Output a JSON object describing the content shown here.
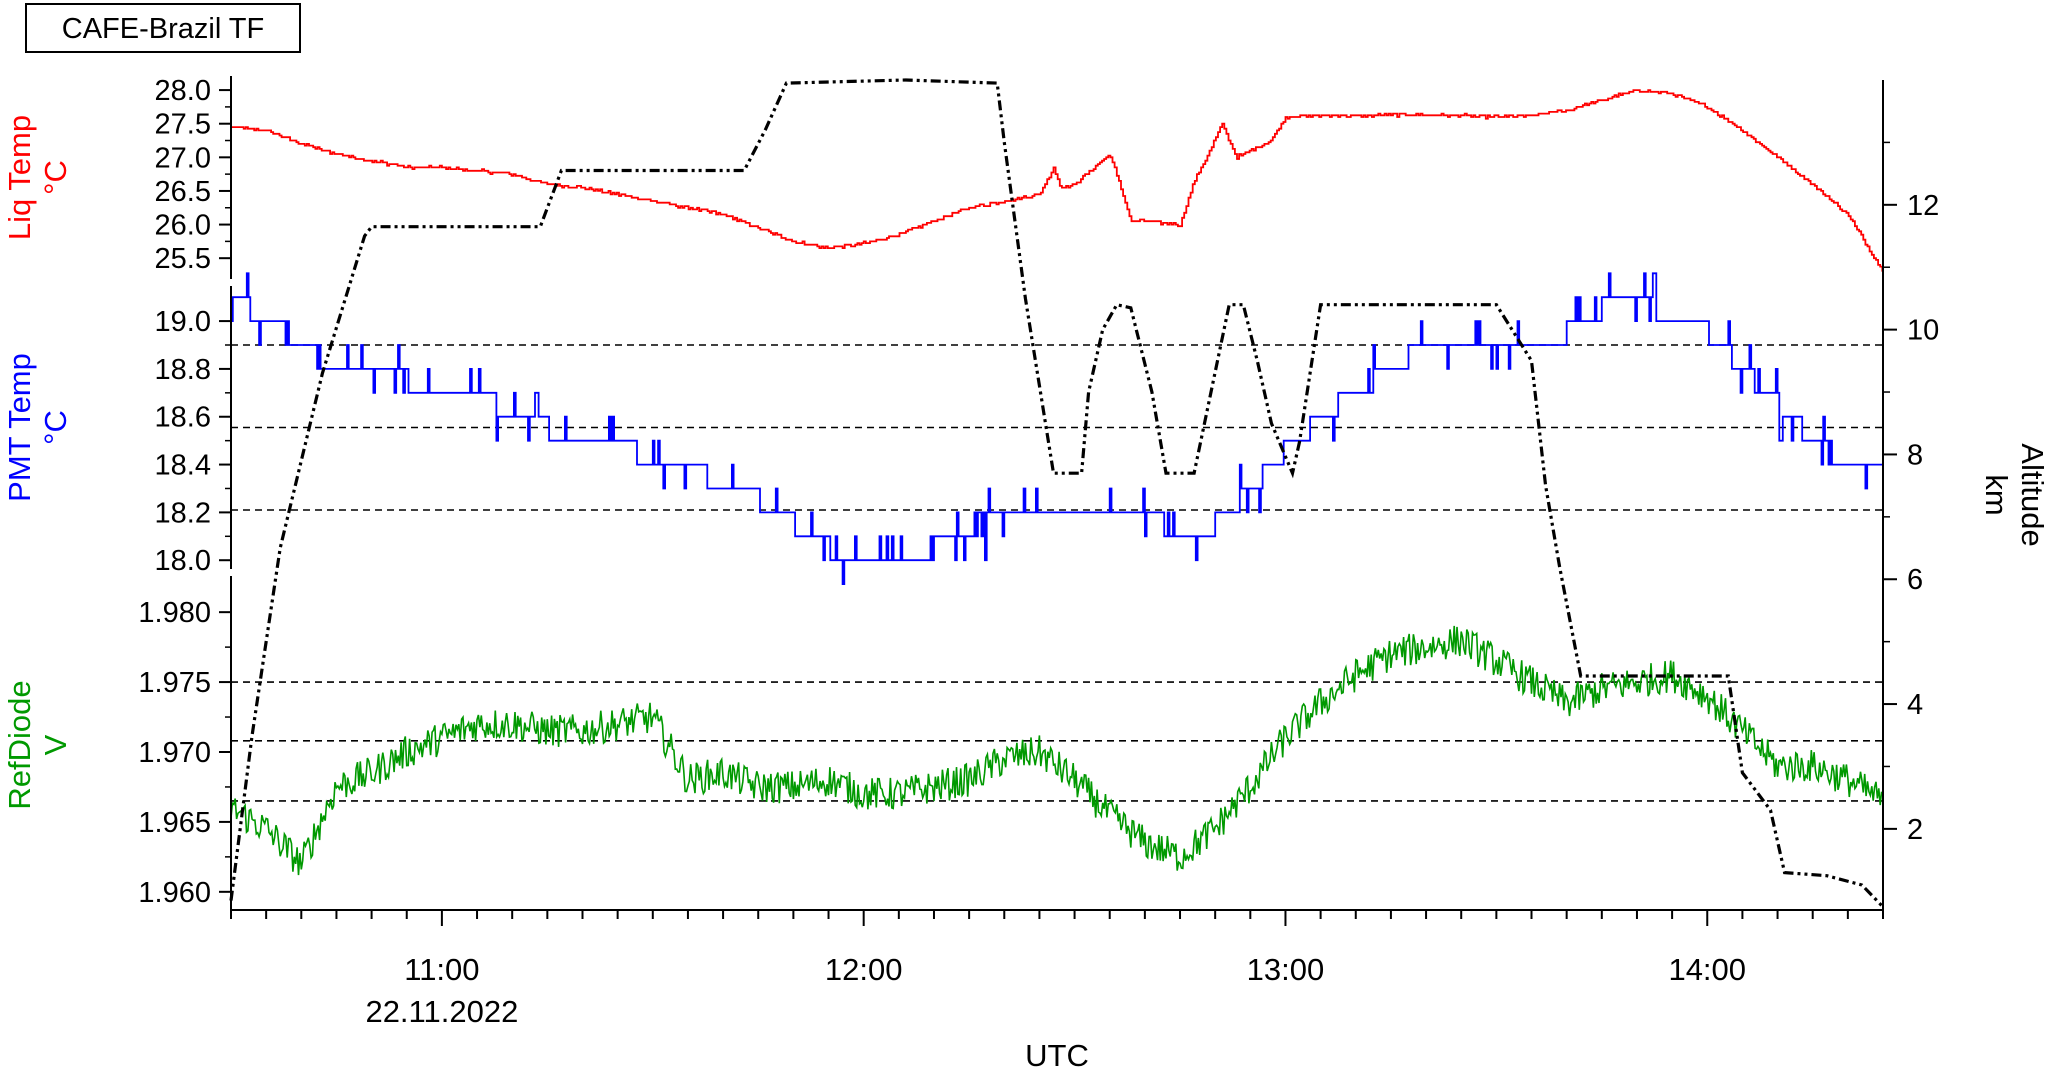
{
  "chart_data": {
    "type": "line",
    "title": "CAFE-Brazil TF",
    "xlabel": "UTC",
    "x_axis": {
      "range": [
        "10:30",
        "14:25"
      ],
      "tick_labels": [
        "11:00",
        "12:00",
        "13:00",
        "14:00"
      ],
      "date_label": "22.11.2022",
      "minor_tick_interval_minutes": 5
    },
    "right_axis": {
      "label_line1": "Altitude",
      "label_line2": "km",
      "range": [
        0.7,
        14.0
      ],
      "ticks": [
        "2",
        "4",
        "6",
        "8",
        "10",
        "12"
      ],
      "color": "#000000"
    },
    "panels": [
      {
        "name": "liq-temp",
        "label_line1": "Liq Temp",
        "label_line2": "°C",
        "color": "#ff0000",
        "range": [
          25.25,
          28.15
        ],
        "ticks": [
          "25.5",
          "26.0",
          "26.5",
          "27.0",
          "27.5",
          "28.0"
        ],
        "gridlines": []
      },
      {
        "name": "pmt-temp",
        "label_line1": "PMT Temp",
        "label_line2": "°C",
        "color": "#0000ff",
        "range": [
          17.98,
          19.13
        ],
        "ticks": [
          "18.0",
          "18.2",
          "18.4",
          "18.6",
          "18.8",
          "19.0"
        ],
        "gridlines": [
          18.21,
          18.555,
          18.9
        ]
      },
      {
        "name": "ref-diode",
        "label_line1": "RefDiode",
        "label_line2": "V",
        "color": "#009900",
        "range": [
          1.9587,
          1.9823
        ],
        "ticks": [
          "1.960",
          "1.965",
          "1.970",
          "1.975",
          "1.980"
        ],
        "gridlines": [
          1.9665,
          1.9708,
          1.975
        ]
      }
    ],
    "series": [
      {
        "name": "Liq Temp",
        "panel": "liq-temp",
        "color": "#ff0000",
        "x": [
          "10:30",
          "10:35",
          "10:40",
          "10:45",
          "10:50",
          "10:55",
          "11:00",
          "11:05",
          "11:10",
          "11:15",
          "11:20",
          "11:25",
          "11:30",
          "11:35",
          "11:40",
          "11:45",
          "11:50",
          "11:55",
          "12:00",
          "12:05",
          "12:10",
          "12:15",
          "12:20",
          "12:25",
          "12:27",
          "12:28",
          "12:30",
          "12:35",
          "12:37",
          "12:38",
          "12:40",
          "12:45",
          "12:47",
          "12:49",
          "12:51",
          "12:53",
          "12:55",
          "12:58",
          "13:00",
          "13:05",
          "13:10",
          "13:15",
          "13:20",
          "13:25",
          "13:30",
          "13:35",
          "13:40",
          "13:45",
          "13:50",
          "13:55",
          "14:00",
          "14:05",
          "14:10",
          "14:15",
          "14:20",
          "14:25"
        ],
        "y": [
          27.45,
          27.4,
          27.2,
          27.05,
          26.95,
          26.85,
          26.85,
          26.8,
          26.75,
          26.6,
          26.55,
          26.45,
          26.35,
          26.25,
          26.15,
          25.95,
          25.75,
          25.65,
          25.72,
          25.85,
          26.05,
          26.25,
          26.35,
          26.45,
          26.85,
          26.55,
          26.6,
          27.05,
          26.4,
          26.05,
          26.05,
          26.0,
          26.65,
          27.05,
          27.5,
          27.0,
          27.1,
          27.25,
          27.6,
          27.62,
          27.62,
          27.63,
          27.63,
          27.62,
          27.6,
          27.62,
          27.7,
          27.85,
          28.0,
          27.95,
          27.75,
          27.4,
          27.0,
          26.6,
          26.15,
          25.3
        ]
      },
      {
        "name": "PMT Temp",
        "panel": "pmt-temp",
        "color": "#0000ff",
        "x": [
          "10:30",
          "10:35",
          "10:40",
          "10:45",
          "10:50",
          "10:55",
          "11:00",
          "11:05",
          "11:10",
          "11:15",
          "11:20",
          "11:25",
          "11:30",
          "11:35",
          "11:40",
          "11:45",
          "11:50",
          "11:55",
          "12:00",
          "12:05",
          "12:10",
          "12:15",
          "12:20",
          "12:25",
          "12:30",
          "12:35",
          "12:40",
          "12:45",
          "12:50",
          "12:55",
          "13:00",
          "13:05",
          "13:10",
          "13:15",
          "13:20",
          "13:25",
          "13:30",
          "13:35",
          "13:40",
          "13:45",
          "13:50",
          "13:55",
          "14:00",
          "14:05",
          "14:10",
          "14:15",
          "14:20",
          "14:25"
        ],
        "y": [
          19.1,
          19.0,
          18.9,
          18.8,
          18.8,
          18.75,
          18.7,
          18.7,
          18.6,
          18.55,
          18.5,
          18.5,
          18.4,
          18.4,
          18.3,
          18.25,
          18.15,
          18.05,
          18.0,
          18.0,
          18.05,
          18.1,
          18.2,
          18.2,
          18.2,
          18.25,
          18.2,
          18.1,
          18.15,
          18.3,
          18.45,
          18.6,
          18.7,
          18.8,
          18.9,
          18.9,
          18.9,
          18.9,
          18.95,
          19.05,
          19.1,
          19.0,
          18.95,
          18.8,
          18.65,
          18.5,
          18.4,
          18.4
        ]
      },
      {
        "name": "RefDiode",
        "panel": "ref-diode",
        "color": "#009900",
        "x": [
          "10:30",
          "10:35",
          "10:40",
          "10:45",
          "10:50",
          "10:55",
          "11:00",
          "11:05",
          "11:10",
          "11:15",
          "11:20",
          "11:25",
          "11:30",
          "11:35",
          "11:40",
          "11:45",
          "11:50",
          "11:55",
          "12:00",
          "12:05",
          "12:10",
          "12:15",
          "12:20",
          "12:25",
          "12:30",
          "12:35",
          "12:40",
          "12:45",
          "12:50",
          "12:55",
          "13:00",
          "13:05",
          "13:10",
          "13:15",
          "13:20",
          "13:25",
          "13:30",
          "13:35",
          "13:40",
          "13:45",
          "13:50",
          "13:55",
          "14:00",
          "14:05",
          "14:10",
          "14:15",
          "14:20",
          "14:25"
        ],
        "y": [
          1.966,
          1.9645,
          1.962,
          1.9675,
          1.9685,
          1.97,
          1.971,
          1.972,
          1.972,
          1.9715,
          1.9715,
          1.972,
          1.9725,
          1.968,
          1.9685,
          1.9675,
          1.9675,
          1.968,
          1.967,
          1.967,
          1.9675,
          1.968,
          1.9695,
          1.97,
          1.968,
          1.9655,
          1.9635,
          1.9625,
          1.9645,
          1.9675,
          1.971,
          1.9735,
          1.9755,
          1.977,
          1.9775,
          1.978,
          1.9765,
          1.975,
          1.9735,
          1.9745,
          1.975,
          1.9755,
          1.974,
          1.9715,
          1.969,
          1.969,
          1.968,
          1.9665
        ]
      },
      {
        "name": "Altitude",
        "panel": "right-axis",
        "color": "#000000",
        "x": [
          "10:30",
          "10:33",
          "10:37",
          "10:43",
          "10:49",
          "10:50",
          "11:03",
          "11:14",
          "11:17",
          "11:26",
          "11:43",
          "11:46",
          "11:49",
          "12:06",
          "12:19",
          "12:20",
          "12:23",
          "12:27",
          "12:31",
          "12:32",
          "12:34",
          "12:36",
          "12:38",
          "12:41",
          "12:43",
          "12:47",
          "12:52",
          "12:54",
          "12:56",
          "12:58",
          "13:01",
          "13:02",
          "13:05",
          "13:30",
          "13:35",
          "13:37",
          "13:39",
          "13:42",
          "14:03",
          "14:05",
          "14:09",
          "14:11",
          "14:17",
          "14:22",
          "14:25"
        ],
        "y": [
          0.85,
          3.5,
          6.5,
          9.3,
          11.5,
          11.65,
          11.65,
          11.65,
          12.55,
          12.55,
          12.55,
          13.2,
          13.95,
          14.0,
          13.95,
          13.0,
          10.5,
          7.7,
          7.7,
          9.0,
          10.0,
          10.4,
          10.35,
          9.0,
          7.7,
          7.7,
          10.4,
          10.4,
          9.5,
          8.5,
          7.7,
          8.2,
          10.4,
          10.4,
          9.5,
          7.5,
          6.2,
          4.45,
          4.45,
          2.9,
          2.3,
          1.3,
          1.25,
          1.1,
          0.75
        ]
      }
    ],
    "annotations": [
      {
        "name": "ref-diode-noise",
        "text": "",
        "panel": "ref-diode",
        "amplitude": 0.0012
      },
      {
        "name": "pmt-digitization-spikes",
        "text": "",
        "panel": "pmt-temp",
        "step": 0.1
      }
    ],
    "grid": false,
    "legend": "none"
  }
}
